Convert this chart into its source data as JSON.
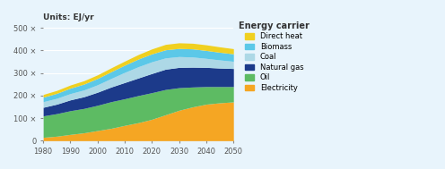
{
  "years": [
    1980,
    1985,
    1990,
    1995,
    2000,
    2005,
    2010,
    2015,
    2020,
    2025,
    2030,
    2035,
    2040,
    2045,
    2050
  ],
  "electricity": [
    15,
    20,
    28,
    35,
    45,
    55,
    68,
    80,
    95,
    115,
    135,
    150,
    162,
    168,
    172
  ],
  "oil": [
    95,
    100,
    105,
    108,
    112,
    118,
    118,
    120,
    118,
    112,
    100,
    88,
    78,
    72,
    68
  ],
  "natural_gas": [
    38,
    42,
    48,
    52,
    58,
    65,
    72,
    78,
    85,
    90,
    90,
    88,
    85,
    82,
    80
  ],
  "coal": [
    25,
    26,
    28,
    30,
    33,
    38,
    45,
    50,
    52,
    50,
    48,
    45,
    40,
    36,
    32
  ],
  "biomass": [
    20,
    22,
    24,
    26,
    28,
    30,
    32,
    34,
    35,
    36,
    36,
    36,
    35,
    34,
    33
  ],
  "direct_heat": [
    12,
    13,
    14,
    15,
    16,
    17,
    18,
    20,
    22,
    24,
    25,
    25,
    25,
    24,
    23
  ],
  "colors": {
    "electricity": "#F5A623",
    "oil": "#5DBB63",
    "natural_gas": "#1C3A8A",
    "coal": "#ADD8E6",
    "biomass": "#5BC8E8",
    "direct_heat": "#F0D020"
  },
  "labels": {
    "electricity": "Electricity",
    "oil": "Oil",
    "natural_gas": "Natural gas",
    "coal": "Coal",
    "biomass": "Biomass",
    "direct_heat": "Direct heat"
  },
  "title": "Units: EJ/yr",
  "legend_title": "Energy carrier",
  "xlim": [
    1980,
    2050
  ],
  "ylim": [
    0,
    520
  ],
  "yticks": [
    0,
    100,
    200,
    300,
    400,
    500
  ],
  "xticks": [
    1980,
    1990,
    2000,
    2010,
    2020,
    2030,
    2040,
    2050
  ],
  "background_color": "#E8F4FC",
  "grid_color": "#FFFFFF"
}
